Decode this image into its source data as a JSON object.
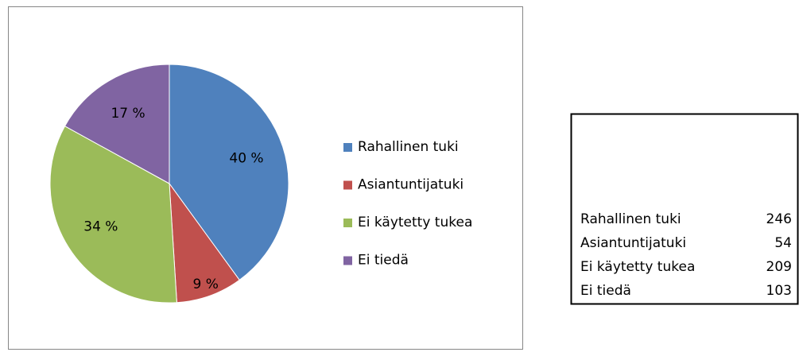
{
  "chart_data": {
    "type": "pie",
    "categories": [
      "Rahallinen tuki",
      "Asiantuntijatuki",
      "Ei käytetty tukea",
      "Ei tiedä"
    ],
    "values": [
      40,
      9,
      34,
      17
    ],
    "value_labels": [
      "40 %",
      "9 %",
      "34 %",
      "17 %"
    ],
    "colors": [
      "#4f81bd",
      "#c0504d",
      "#9bbb59",
      "#8064a2"
    ],
    "legend": "right"
  },
  "table": {
    "rows": [
      [
        "Rahallinen tuki",
        246
      ],
      [
        "Asiantuntijatuki",
        54
      ],
      [
        "Ei käytetty tukea",
        209
      ],
      [
        "Ei tiedä",
        103
      ]
    ]
  }
}
